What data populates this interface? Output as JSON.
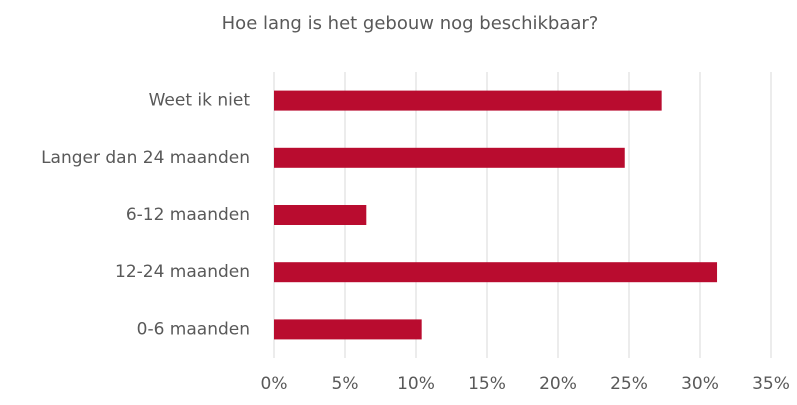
{
  "chart_data": {
    "type": "bar",
    "orientation": "horizontal",
    "title": "Hoe lang is het gebouw nog beschikbaar?",
    "categories": [
      "Weet ik niet",
      "Langer dan 24 maanden",
      "6-12 maanden",
      "12-24 maanden",
      "0-6 maanden"
    ],
    "values": [
      27.3,
      24.7,
      6.5,
      31.2,
      10.4
    ],
    "color": "#b90c2f",
    "xlim": [
      0,
      35
    ],
    "xticks": [
      {
        "value": 0,
        "label": "0%"
      },
      {
        "value": 5,
        "label": "5%"
      },
      {
        "value": 10,
        "label": "10%"
      },
      {
        "value": 15,
        "label": "15%"
      },
      {
        "value": 20,
        "label": "20%"
      },
      {
        "value": 25,
        "label": "25%"
      },
      {
        "value": 30,
        "label": "30%"
      },
      {
        "value": 35,
        "label": "35%"
      }
    ],
    "grid": true
  }
}
